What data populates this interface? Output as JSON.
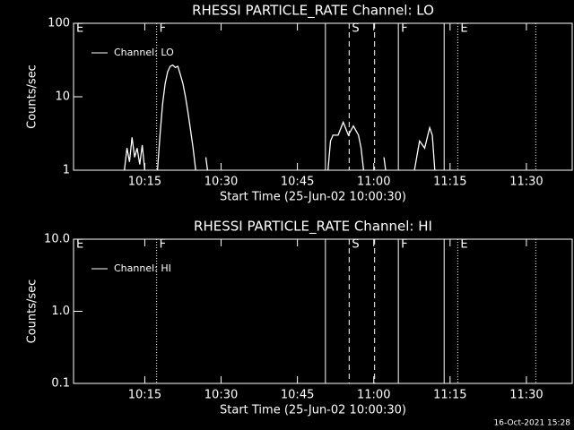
{
  "chart_data": [
    {
      "type": "line",
      "title": "RHESSI PARTICLE_RATE Channel: LO",
      "xlabel": "Start Time (25-Jun-02 10:00:30)",
      "ylabel": "Counts/sec",
      "x": [
        "10:11:00",
        "10:11:30",
        "10:12:00",
        "10:12:30",
        "10:13:00",
        "10:13:30",
        "10:14:00",
        "10:14:30",
        "10:15:00",
        "10:16:00",
        "10:17:30",
        "10:18:00",
        "10:18:30",
        "10:19:00",
        "10:19:30",
        "10:20:00",
        "10:20:30",
        "10:21:00",
        "10:21:30",
        "10:22:00",
        "10:22:30",
        "10:23:00",
        "10:23:30",
        "10:24:00",
        "10:24:30",
        "10:25:00",
        "10:26:00",
        "10:27:00",
        "10:27:20",
        "10:40:00",
        "10:51:00",
        "10:51:30",
        "10:52:00",
        "10:53:00",
        "10:54:00",
        "10:55:00",
        "10:56:00",
        "10:57:00",
        "10:57:30",
        "10:58:00",
        "11:00:00",
        "11:02:00",
        "11:02:20",
        "11:05:00",
        "11:08:00",
        "11:09:00",
        "11:10:00",
        "11:11:00",
        "11:11:30",
        "11:12:00"
      ],
      "series": [
        {
          "name": "Channel: LO",
          "color": "#ffffff",
          "values": [
            1,
            2,
            1.3,
            2.8,
            1.5,
            2,
            1.2,
            2.2,
            1,
            null,
            1,
            3,
            8,
            15,
            22,
            26,
            27,
            25,
            26,
            20,
            15,
            10,
            6,
            3.5,
            2,
            1,
            null,
            1.5,
            1,
            null,
            1,
            2.5,
            3,
            3,
            4.5,
            3,
            4,
            3,
            2,
            1,
            null,
            1.5,
            1,
            null,
            1,
            2.5,
            2,
            3.8,
            3,
            1
          ]
        }
      ],
      "xlim": [
        "10:01",
        "11:39"
      ],
      "xticks": [
        "10:15",
        "10:30",
        "10:45",
        "11:00",
        "11:15",
        "11:30"
      ],
      "ylim": [
        1,
        100
      ],
      "yticks": [
        1,
        10,
        100
      ],
      "log_y": true,
      "markers": [
        {
          "time": "10:01",
          "label": "E"
        },
        {
          "time": "10:17:20",
          "style": "dotted",
          "label": "F"
        },
        {
          "time": "10:50:30",
          "style": "solid"
        },
        {
          "time": "10:55:10",
          "style": "dashed",
          "label": "S"
        },
        {
          "time": "11:00:10",
          "style": "dashed"
        },
        {
          "time": "11:04:50",
          "style": "solid",
          "label": "F"
        },
        {
          "time": "11:13:50",
          "style": "solid"
        },
        {
          "time": "11:16:30",
          "style": "dotted",
          "label": "E"
        },
        {
          "time": "11:31:50",
          "style": "dotted"
        }
      ]
    },
    {
      "type": "line",
      "title": "RHESSI PARTICLE_RATE Channel: HI",
      "xlabel": "Start Time (25-Jun-02 10:00:30)",
      "ylabel": "Counts/sec",
      "x": [],
      "series": [
        {
          "name": "Channel: HI",
          "color": "#ffffff",
          "values": []
        }
      ],
      "xlim": [
        "10:01",
        "11:39"
      ],
      "xticks": [
        "10:15",
        "10:30",
        "10:45",
        "11:00",
        "11:15",
        "11:30"
      ],
      "ylim": [
        0.1,
        10
      ],
      "yticks": [
        0.1,
        {
          "value": 1,
          "label": "1.0"
        },
        {
          "value": 10,
          "label": "10.0"
        }
      ],
      "log_y": true,
      "markers": [
        {
          "time": "10:01",
          "label": "E"
        },
        {
          "time": "10:17:20",
          "style": "dotted",
          "label": "F"
        },
        {
          "time": "10:50:30",
          "style": "solid"
        },
        {
          "time": "10:55:10",
          "style": "dashed",
          "label": "S"
        },
        {
          "time": "11:00:10",
          "style": "dashed"
        },
        {
          "time": "11:04:50",
          "style": "solid",
          "label": "F"
        },
        {
          "time": "11:13:50",
          "style": "solid"
        },
        {
          "time": "11:16:30",
          "style": "dotted",
          "label": "E"
        },
        {
          "time": "11:31:50",
          "style": "dotted"
        }
      ]
    }
  ],
  "footer": "16-Oct-2021 15:28"
}
